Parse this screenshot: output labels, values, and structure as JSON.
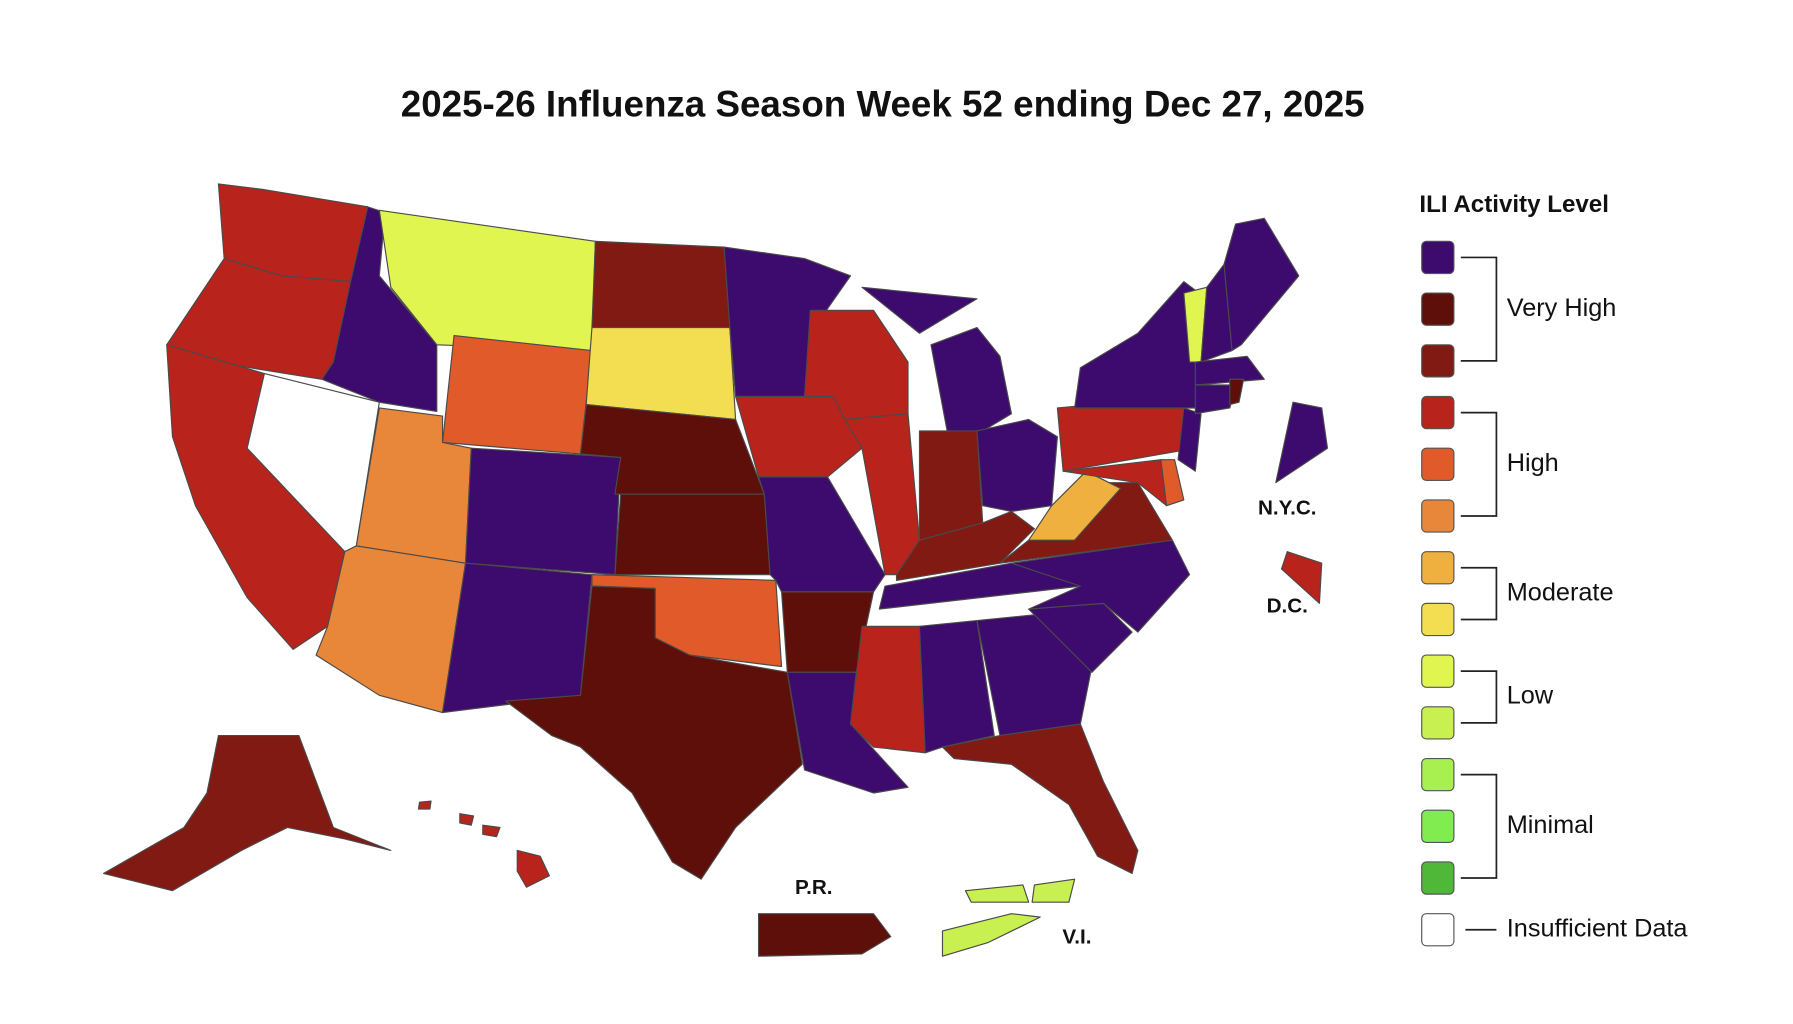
{
  "title": "2025-26 Influenza Season Week 52 ending Dec 27, 2025",
  "legend": {
    "title": "ILI Activity Level",
    "groups": [
      {
        "label": "Very High",
        "colors": [
          "#3d0a6e",
          "#5e0f0a",
          "#801a12"
        ]
      },
      {
        "label": "High",
        "colors": [
          "#b8231b",
          "#e05a2a",
          "#e8873a"
        ]
      },
      {
        "label": "Moderate",
        "colors": [
          "#f0b040",
          "#f2de50"
        ]
      },
      {
        "label": "Low",
        "colors": [
          "#e0f550",
          "#c8f050"
        ]
      },
      {
        "label": "Minimal",
        "colors": [
          "#a8f050",
          "#80ec50",
          "#50b838"
        ]
      }
    ],
    "insufficient": {
      "label": "Insufficient Data",
      "color": "#ffffff"
    }
  },
  "insets": [
    "N.Y.C.",
    "D.C.",
    "P.R.",
    "V.I."
  ]
}
